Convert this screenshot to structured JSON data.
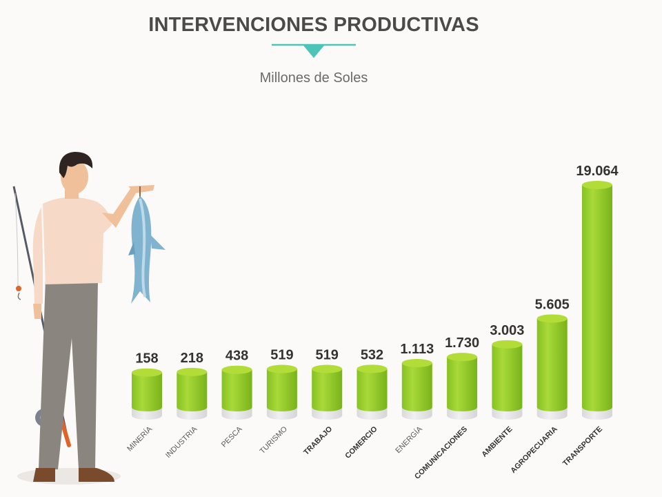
{
  "chart_data": {
    "type": "bar",
    "title": "INTERVENCIONES PRODUCTIVAS",
    "subtitle": "Millones de Soles",
    "categories": [
      "MINERÍA",
      "INDUSTRIA",
      "PESCA",
      "TURISMO",
      "TRABAJO",
      "COMERCIO",
      "ENERGÍA",
      "COMUNICACIONES",
      "AMBIENTE",
      "AGROPECUARIA",
      "TRANSPORTE"
    ],
    "values": [
      158,
      218,
      438,
      519,
      519,
      532,
      1113,
      1730,
      3003,
      5605,
      19064
    ],
    "value_labels": [
      "158",
      "218",
      "438",
      "519",
      "519",
      "532",
      "1.113",
      "1.730",
      "3.003",
      "5.605",
      "19.064"
    ],
    "bold_categories": [
      "TRABAJO",
      "COMERCIO",
      "COMUNICACIONES",
      "AMBIENTE",
      "AGROPECUARIA",
      "TRANSPORTE"
    ],
    "xlabel": "",
    "ylabel": "",
    "grid": false,
    "legend": "none"
  },
  "colors": {
    "bar_top": "#b2dc38",
    "bar_light": "#a9d93a",
    "bar_dark": "#7cb81c",
    "base": "#e6e6e6",
    "accent": "#4cc4b8",
    "title": "#4a4a4a",
    "label": "#333333",
    "category": "#5a5a5a"
  },
  "illustration": {
    "icon": "fisherman-with-fish-icon"
  }
}
